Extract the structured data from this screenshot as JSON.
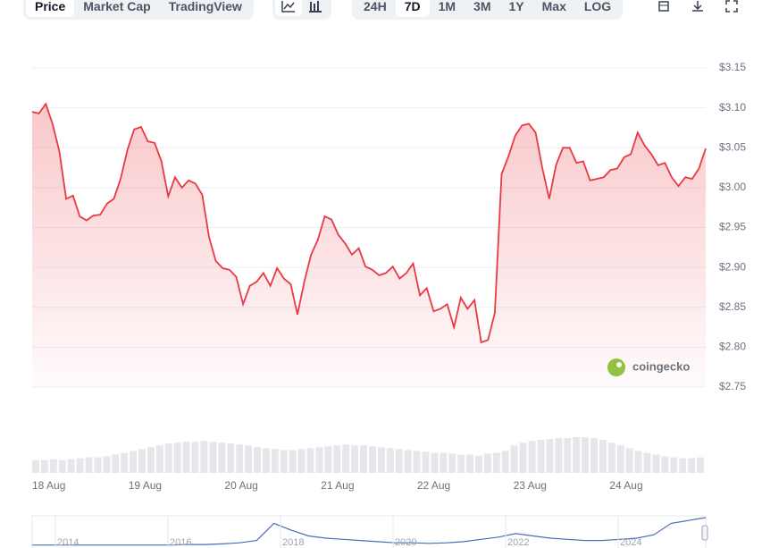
{
  "toolbar": {
    "views": [
      "Price",
      "Market Cap",
      "TradingView"
    ],
    "active_view": 0,
    "ranges": [
      "24H",
      "7D",
      "1M",
      "3M",
      "1Y",
      "Max",
      "LOG"
    ],
    "active_range": 1
  },
  "watermark": "coingecko",
  "chart_data": {
    "type": "line",
    "color": "#ea3943",
    "x_labels": [
      "18 Aug",
      "19 Aug",
      "20 Aug",
      "21 Aug",
      "22 Aug",
      "23 Aug",
      "24 Aug"
    ],
    "values": [
      3.095,
      3.093,
      3.105,
      3.08,
      3.045,
      2.986,
      2.99,
      2.964,
      2.959,
      2.965,
      2.966,
      2.98,
      2.986,
      3.011,
      3.047,
      3.073,
      3.076,
      3.058,
      3.056,
      3.033,
      2.989,
      3.013,
      3.0,
      3.009,
      3.005,
      2.991,
      2.938,
      2.908,
      2.899,
      2.897,
      2.888,
      2.854,
      2.877,
      2.882,
      2.893,
      2.877,
      2.899,
      2.886,
      2.879,
      2.841,
      2.882,
      2.916,
      2.935,
      2.964,
      2.96,
      2.941,
      2.93,
      2.916,
      2.924,
      2.901,
      2.897,
      2.89,
      2.893,
      2.901,
      2.886,
      2.893,
      2.905,
      2.865,
      2.874,
      2.845,
      2.848,
      2.854,
      2.825,
      2.862,
      2.848,
      2.859,
      2.806,
      2.809,
      2.843,
      3.017,
      3.039,
      3.065,
      3.078,
      3.08,
      3.069,
      3.024,
      2.986,
      3.028,
      3.05,
      3.05,
      3.031,
      3.033,
      3.009,
      3.011,
      3.013,
      3.022,
      3.024,
      3.038,
      3.042,
      3.069,
      3.053,
      3.042,
      3.028,
      3.031,
      3.013,
      3.002,
      3.013,
      3.011,
      3.024,
      3.049
    ],
    "ylim": [
      2.75,
      3.15
    ],
    "yticks": [
      {
        "value": 2.75,
        "label": "$2.75"
      },
      {
        "value": 2.8,
        "label": "$2.80"
      },
      {
        "value": 2.85,
        "label": "$2.85"
      },
      {
        "value": 2.9,
        "label": "$2.90"
      },
      {
        "value": 2.95,
        "label": "$2.95"
      },
      {
        "value": 3.0,
        "label": "$3.00"
      },
      {
        "value": 3.05,
        "label": "$3.05"
      },
      {
        "value": 3.1,
        "label": "$3.10"
      },
      {
        "value": 3.15,
        "label": "$3.15"
      }
    ],
    "grid": true
  },
  "volume": {
    "color": "#e5e7eb",
    "values": [
      14,
      14,
      15,
      14,
      15,
      16,
      17,
      17,
      18,
      20,
      22,
      24,
      26,
      28,
      30,
      32,
      33,
      34,
      34,
      35,
      34,
      33,
      32,
      31,
      30,
      28,
      27,
      26,
      25,
      25,
      26,
      27,
      28,
      29,
      30,
      31,
      30,
      30,
      29,
      28,
      27,
      26,
      25,
      24,
      23,
      22,
      22,
      21,
      20,
      20,
      19,
      21,
      22,
      24,
      30,
      33,
      35,
      36,
      37,
      38,
      38,
      39,
      39,
      38,
      36,
      33,
      30,
      27,
      24,
      22,
      20,
      18,
      17,
      16,
      16,
      17
    ]
  },
  "navigator": {
    "color": "#4b6cb7",
    "labels": [
      "2014",
      "2016",
      "2018",
      "2020",
      "2022",
      "2024"
    ],
    "values": [
      2,
      2,
      2,
      2,
      2,
      2,
      2,
      2,
      2,
      3,
      3,
      4,
      6,
      10,
      40,
      28,
      18,
      14,
      12,
      10,
      8,
      6,
      6,
      5,
      6,
      8,
      12,
      16,
      22,
      18,
      14,
      12,
      10,
      10,
      12,
      14,
      20,
      40,
      45,
      50
    ]
  }
}
